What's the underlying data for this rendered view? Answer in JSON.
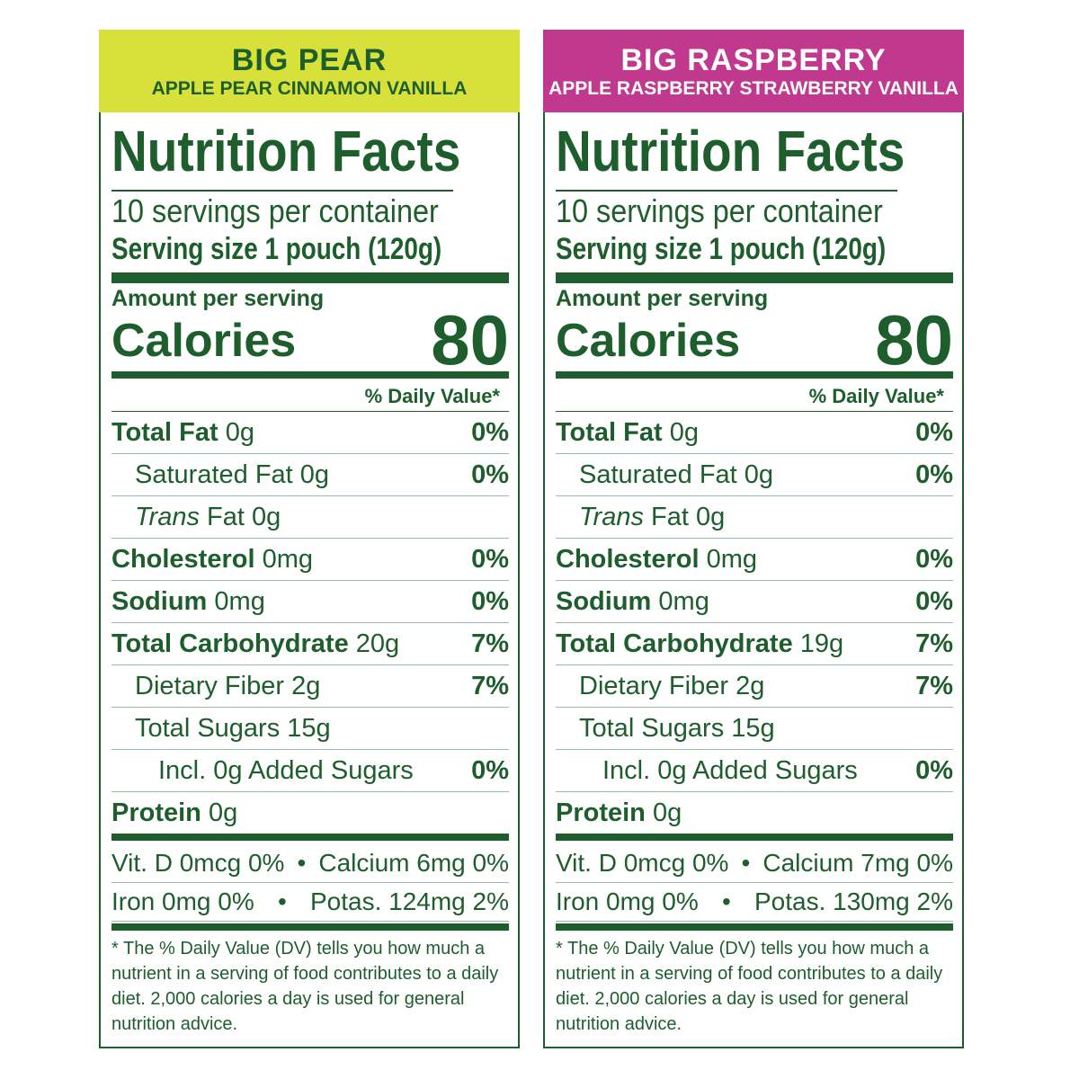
{
  "panels": [
    {
      "header": {
        "title": "BIG PEAR",
        "subtitle": "APPLE PEAR CINNAMON VANILLA",
        "color": "#d7e13a",
        "text_color": "#1d5e2c"
      },
      "heading": "Nutrition Facts",
      "servings": "10 servings per container",
      "serving_size": "Serving size 1 pouch (120g)",
      "amount_label": "Amount per serving",
      "calories_label": "Calories",
      "calories": "80",
      "dv_header": "% Daily Value*",
      "rows": [
        {
          "name": "Total Fat",
          "amount": "0g",
          "dv": "0%"
        },
        {
          "name": "Saturated Fat",
          "amount": "0g",
          "dv": "0%"
        },
        {
          "name": "Trans",
          "amount": "Fat 0g"
        },
        {
          "name": "Cholesterol",
          "amount": "0mg",
          "dv": "0%"
        },
        {
          "name": "Sodium",
          "amount": "0mg",
          "dv": "0%"
        },
        {
          "name": "Total Carbohydrate",
          "amount": "20g",
          "dv": "7%"
        },
        {
          "name": "Dietary Fiber",
          "amount": "2g",
          "dv": "7%"
        },
        {
          "name": "Total Sugars",
          "amount": "15g"
        },
        {
          "name": "Incl. 0g Added Sugars",
          "dv": "0%"
        },
        {
          "name": "Protein",
          "amount": "0g"
        }
      ],
      "minerals": [
        [
          "Vit. D 0mcg 0%",
          "Calcium 6mg 0%"
        ],
        [
          "Iron 0mg 0%",
          "Potas. 124mg 2%"
        ]
      ],
      "footnote": "* The % Daily Value (DV) tells you how much a nutrient in a serving of food contributes to a daily diet. 2,000 calories a day is used for general nutrition advice."
    },
    {
      "header": {
        "title": "BIG RASPBERRY",
        "subtitle": "APPLE RASPBERRY STRAWBERRY VANILLA",
        "color": "#c1398f",
        "text_color": "#ffffff"
      },
      "heading": "Nutrition Facts",
      "servings": "10 servings per container",
      "serving_size": "Serving size 1 pouch (120g)",
      "amount_label": "Amount per serving",
      "calories_label": "Calories",
      "calories": "80",
      "dv_header": "% Daily Value*",
      "rows": [
        {
          "name": "Total Fat",
          "amount": "0g",
          "dv": "0%"
        },
        {
          "name": "Saturated Fat",
          "amount": "0g",
          "dv": "0%"
        },
        {
          "name": "Trans",
          "amount": "Fat 0g"
        },
        {
          "name": "Cholesterol",
          "amount": "0mg",
          "dv": "0%"
        },
        {
          "name": "Sodium",
          "amount": "0mg",
          "dv": "0%"
        },
        {
          "name": "Total Carbohydrate",
          "amount": "19g",
          "dv": "7%"
        },
        {
          "name": "Dietary Fiber",
          "amount": "2g",
          "dv": "7%"
        },
        {
          "name": "Total Sugars",
          "amount": "15g"
        },
        {
          "name": "Incl. 0g Added Sugars",
          "dv": "0%"
        },
        {
          "name": "Protein",
          "amount": "0g"
        }
      ],
      "minerals": [
        [
          "Vit. D 0mcg 0%",
          "Calcium 7mg 0%"
        ],
        [
          "Iron 0mg 0%",
          "Potas. 130mg 2%"
        ]
      ],
      "footnote": "* The % Daily Value (DV) tells you how much a nutrient in a serving of food contributes to a daily diet. 2,000 calories a day is used for general nutrition advice."
    }
  ]
}
